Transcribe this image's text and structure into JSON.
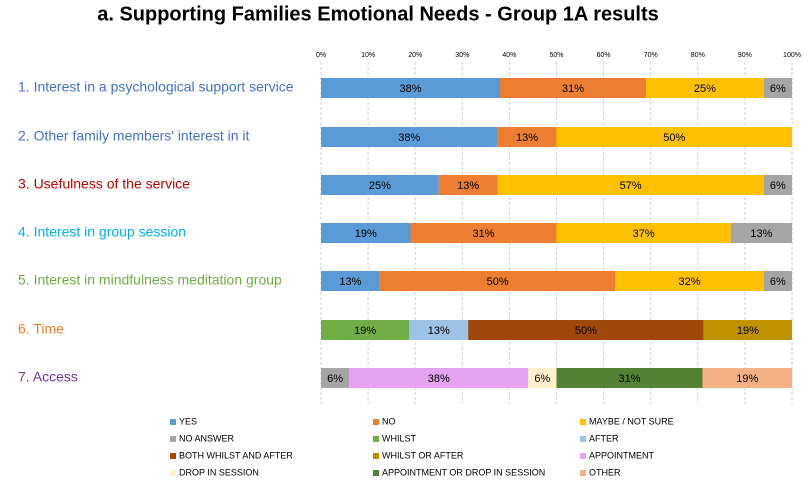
{
  "chart_data": {
    "type": "stacked_bar_horizontal",
    "title": "a. Supporting Families Emotional Needs - Group 1A results",
    "categories": [
      "1. Interest in a psychological support service",
      "2. Other family members' interest in it",
      "3. Usefulness of the service",
      "4. Interest in group session",
      "5. Interest in mindfulness meditation group",
      "6. Time",
      "7. Access"
    ],
    "category_colors": [
      "#4472c4",
      "#4472c4",
      "#c00000",
      "#00b0f0",
      "#70ad47",
      "#ed7d31",
      "#7030a0"
    ],
    "xlim": [
      0,
      100
    ],
    "xticks": [
      {
        "value": 0,
        "label": "0%"
      },
      {
        "value": 10,
        "label": "10%"
      },
      {
        "value": 20,
        "label": "20%"
      },
      {
        "value": 30,
        "label": "30%"
      },
      {
        "value": 40,
        "label": "40%"
      },
      {
        "value": 50,
        "label": "50%"
      },
      {
        "value": 60,
        "label": "60%"
      },
      {
        "value": 70,
        "label": "70%"
      },
      {
        "value": 80,
        "label": "80%"
      },
      {
        "value": 90,
        "label": "90%"
      },
      {
        "value": 100,
        "label": "100%"
      }
    ],
    "grid": true,
    "series": [
      {
        "name": "YES",
        "color": "#5b9bd5",
        "values": [
          38,
          37.5,
          25,
          19,
          12.5,
          null,
          null
        ],
        "value_labels": [
          "38%",
          "38%",
          "25%",
          "19%",
          "13%",
          null,
          null
        ]
      },
      {
        "name": "NO",
        "color": "#ed7d31",
        "values": [
          31,
          12.5,
          12.5,
          31,
          50,
          null,
          null
        ],
        "value_labels": [
          "31%",
          "13%",
          "13%",
          "31%",
          "50%",
          null,
          null
        ]
      },
      {
        "name": "MAYBE / NOT SURE",
        "color": "#ffc000",
        "values": [
          25,
          50,
          56.5,
          37,
          31.5,
          null,
          null
        ],
        "value_labels": [
          "25%",
          "50%",
          "57%",
          "37%",
          "32%",
          null,
          null
        ]
      },
      {
        "name": "NO ANSWER",
        "color": "#a5a5a5",
        "values": [
          6,
          null,
          6,
          13,
          6,
          null,
          6
        ],
        "value_labels": [
          "6%",
          null,
          "6%",
          "13%",
          "6%",
          null,
          "6%"
        ]
      },
      {
        "name": "WHILST",
        "color": "#70ad47",
        "values": [
          null,
          null,
          null,
          null,
          null,
          18.75,
          null
        ],
        "value_labels": [
          null,
          null,
          null,
          null,
          null,
          "19%",
          null
        ]
      },
      {
        "name": "AFTER",
        "color": "#9dc3e6",
        "values": [
          null,
          null,
          null,
          null,
          null,
          12.5,
          null
        ],
        "value_labels": [
          null,
          null,
          null,
          null,
          null,
          "13%",
          null
        ]
      },
      {
        "name": "BOTH WHILST AND AFTER",
        "color": "#9e480e",
        "values": [
          null,
          null,
          null,
          null,
          null,
          50,
          null
        ],
        "value_labels": [
          null,
          null,
          null,
          null,
          null,
          "50%",
          null
        ]
      },
      {
        "name": "WHILST OR AFTER",
        "color": "#bf9000",
        "values": [
          null,
          null,
          null,
          null,
          null,
          18.75,
          null
        ],
        "value_labels": [
          null,
          null,
          null,
          null,
          null,
          "19%",
          null
        ]
      },
      {
        "name": "APPOINTMENT",
        "color": "#e6a3f2",
        "values": [
          null,
          null,
          null,
          null,
          null,
          null,
          38
        ],
        "value_labels": [
          null,
          null,
          null,
          null,
          null,
          null,
          "38%"
        ]
      },
      {
        "name": "DROP IN SESSION",
        "color": "#fff2cc",
        "values": [
          null,
          null,
          null,
          null,
          null,
          null,
          6
        ],
        "value_labels": [
          null,
          null,
          null,
          null,
          null,
          null,
          "6%"
        ]
      },
      {
        "name": "APPOINTMENT OR DROP IN SESSION",
        "color": "#548235",
        "values": [
          null,
          null,
          null,
          null,
          null,
          null,
          31
        ],
        "value_labels": [
          null,
          null,
          null,
          null,
          null,
          null,
          "31%"
        ]
      },
      {
        "name": "OTHER",
        "color": "#f4b183",
        "values": [
          null,
          null,
          null,
          null,
          null,
          null,
          19
        ],
        "value_labels": [
          null,
          null,
          null,
          null,
          null,
          null,
          "19%"
        ]
      }
    ]
  }
}
